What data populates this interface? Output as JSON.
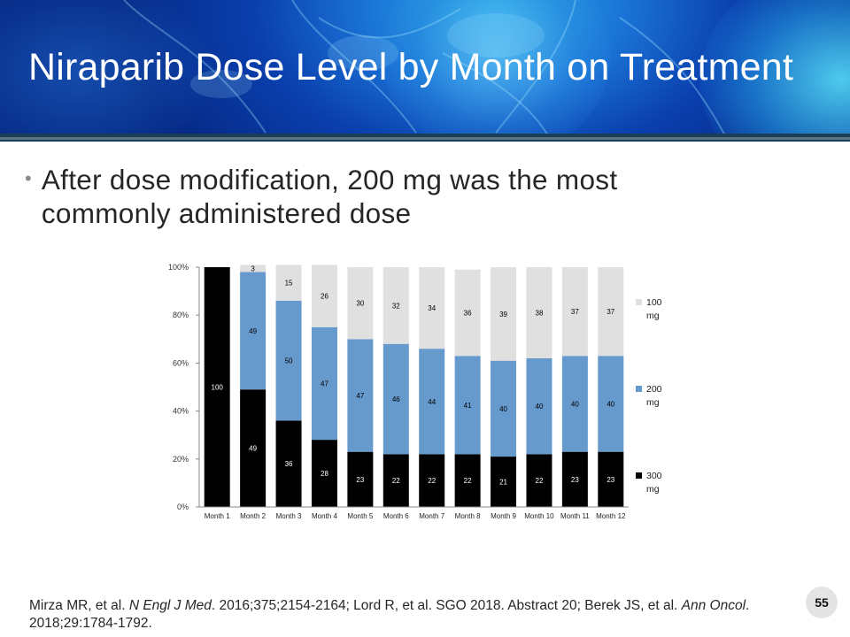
{
  "slide": {
    "title": "Niraparib Dose Level by Month on Treatment",
    "bullet": "After dose modification, 200 mg was the most commonly administered dose",
    "citation": {
      "p1": "Mirza MR, et al. ",
      "j1": "N Engl J Med",
      "p2": ". 2016;375;2154-2164; Lord R, et al. SGO 2018. Abstract 20; Berek JS, et al. ",
      "j2": "Ann Oncol",
      "p3": ". 2018;29:1784-1792."
    },
    "page_number": "55"
  },
  "chart_data": {
    "type": "bar",
    "stacked": true,
    "categories": [
      "Month 1",
      "Month 2",
      "Month 3",
      "Month 4",
      "Month 5",
      "Month 6",
      "Month 7",
      "Month 8",
      "Month 9",
      "Month 10",
      "Month 11",
      "Month 12"
    ],
    "series": [
      {
        "name": "300 mg",
        "color": "#000000",
        "label_color": "#ffffff",
        "values": [
          100,
          49,
          36,
          28,
          23,
          22,
          22,
          22,
          21,
          22,
          23,
          23
        ]
      },
      {
        "name": "200 mg",
        "color": "#6699cc",
        "label_color": "#000000",
        "values": [
          0,
          49,
          50,
          47,
          47,
          46,
          44,
          41,
          40,
          40,
          40,
          40
        ]
      },
      {
        "name": "100 mg",
        "color": "#e0e0e0",
        "label_color": "#000000",
        "values": [
          0,
          3,
          15,
          26,
          30,
          32,
          34,
          36,
          39,
          38,
          37,
          37
        ]
      }
    ],
    "legend": [
      {
        "line1": "100",
        "line2": "mg",
        "color": "#e0e0e0"
      },
      {
        "line1": "200",
        "line2": "mg",
        "color": "#6699cc"
      },
      {
        "line1": "300",
        "line2": "mg",
        "color": "#000000"
      }
    ],
    "y_ticks": [
      "0%",
      "20%",
      "40%",
      "60%",
      "80%",
      "100%"
    ],
    "ylim": [
      0,
      100
    ],
    "title": "",
    "xlabel": "",
    "ylabel": "",
    "legend_position": "right"
  }
}
